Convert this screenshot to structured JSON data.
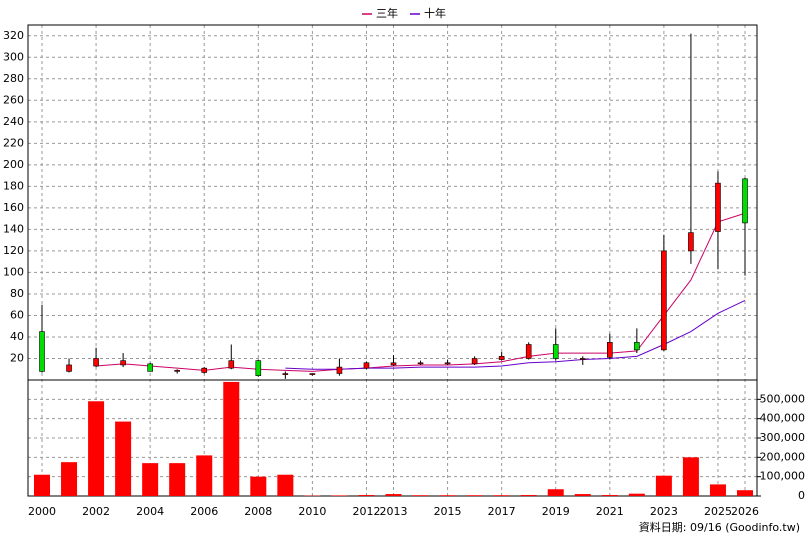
{
  "chart_data": {
    "type": "candlestick",
    "categories": [
      "2000",
      null,
      "2002",
      null,
      "2004",
      null,
      "2006",
      null,
      "2008",
      null,
      "2010",
      null,
      "2012",
      "2013",
      null,
      "2015",
      null,
      "2017",
      null,
      "2019",
      null,
      "2021",
      null,
      "2023",
      null,
      "2025",
      "2026"
    ],
    "ohlc": {
      "open": [
        45,
        8,
        13,
        14,
        15,
        8,
        7,
        11,
        18,
        5,
        5,
        6,
        11,
        14,
        15,
        15,
        15,
        19,
        20,
        33,
        19,
        21,
        35,
        28,
        120,
        138,
        187
      ],
      "high": [
        70,
        20,
        30,
        25,
        16,
        10,
        12,
        33,
        19,
        8,
        6,
        20,
        17,
        23,
        18,
        19,
        22,
        26,
        35,
        48,
        22,
        43,
        48,
        135,
        322,
        194,
        188
      ],
      "low": [
        7,
        7,
        12,
        12,
        8,
        6,
        6,
        10,
        3,
        1,
        4,
        4,
        10,
        13,
        14,
        14,
        14,
        18,
        19,
        18,
        14,
        19,
        25,
        27,
        108,
        103,
        97
      ],
      "close": [
        8,
        14,
        20,
        18,
        8,
        9,
        11,
        18,
        4,
        6,
        6,
        12,
        16,
        16,
        16,
        16,
        20,
        22,
        33,
        20,
        20,
        35,
        28,
        120,
        137,
        183,
        146
      ]
    },
    "up_color": "#ff0000",
    "down_color": "#00dd00",
    "ylim": [
      0,
      330
    ],
    "yticks": [
      20,
      40,
      60,
      80,
      100,
      120,
      140,
      160,
      180,
      200,
      220,
      240,
      260,
      280,
      300,
      320
    ],
    "series": [
      {
        "name": "三年",
        "color": "#cc0066",
        "values": [
          null,
          null,
          13,
          15,
          13,
          11,
          9,
          12,
          10,
          9,
          8,
          10,
          11,
          13,
          14,
          14,
          15,
          17,
          22,
          25,
          25,
          25,
          27,
          60,
          93,
          147,
          155
        ]
      },
      {
        "name": "十年",
        "color": "#6600cc",
        "values": [
          null,
          null,
          null,
          null,
          null,
          null,
          null,
          null,
          null,
          11,
          10,
          10,
          11,
          11,
          12,
          12,
          12,
          13,
          16,
          17,
          19,
          20,
          22,
          33,
          45,
          62,
          74
        ]
      }
    ],
    "volume": {
      "color": "#ff0000",
      "values": [
        110000,
        175000,
        490000,
        385000,
        170000,
        170000,
        210000,
        590000,
        100000,
        110000,
        2000,
        3000,
        5000,
        10000,
        4000,
        4000,
        4000,
        4000,
        5000,
        35000,
        10000,
        5000,
        12000,
        105000,
        200000,
        60000,
        30000
      ],
      "ylim": [
        0,
        600000
      ],
      "yticks": [
        0,
        {
          "value": 100000,
          "label": "100,000"
        },
        {
          "value": 200000,
          "label": "200,000"
        },
        {
          "value": 300000,
          "label": "300,000"
        },
        {
          "value": 400000,
          "label": "400,000"
        },
        {
          "value": 500000,
          "label": "500,000"
        }
      ]
    },
    "grid": true,
    "footer": "資料日期: 09/16  (Goodinfo.tw)"
  }
}
